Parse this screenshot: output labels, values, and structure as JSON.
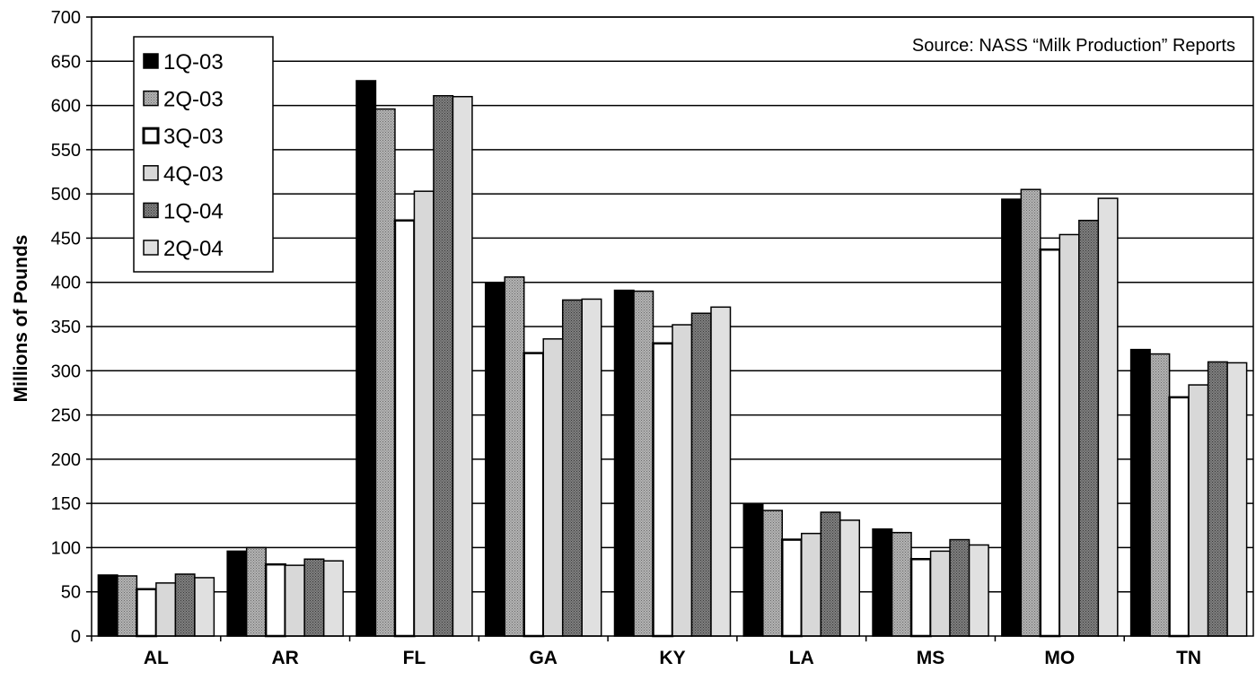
{
  "chart_data": {
    "type": "bar",
    "ylabel": "Millions of Pounds",
    "xlabel": "",
    "ylim": [
      0,
      700
    ],
    "ytick_step": 50,
    "grid": true,
    "legend_position": "top-left",
    "annotation": "Source: NASS “Milk Production” Reports",
    "categories": [
      "AL",
      "AR",
      "FL",
      "GA",
      "KY",
      "LA",
      "MS",
      "MO",
      "TN"
    ],
    "series": [
      {
        "name": "1Q-03",
        "color": "#000000",
        "pattern": "solid",
        "values": [
          69,
          96,
          628,
          399,
          391,
          149,
          121,
          494,
          324
        ]
      },
      {
        "name": "2Q-03",
        "color": "#a0a0a0",
        "pattern": "dots",
        "values": [
          68,
          100,
          596,
          406,
          390,
          142,
          117,
          505,
          319
        ]
      },
      {
        "name": "3Q-03",
        "color": "#ffffff",
        "pattern": "outline",
        "values": [
          53,
          81,
          470,
          320,
          331,
          109,
          87,
          437,
          270
        ]
      },
      {
        "name": "4Q-03",
        "color": "#d8d8d8",
        "pattern": "solid",
        "values": [
          60,
          80,
          503,
          336,
          352,
          116,
          96,
          454,
          284
        ]
      },
      {
        "name": "1Q-04",
        "color": "#707070",
        "pattern": "dots",
        "values": [
          70,
          87,
          611,
          380,
          365,
          140,
          109,
          470,
          310
        ]
      },
      {
        "name": "2Q-04",
        "color": "#e0e0e0",
        "pattern": "solid",
        "values": [
          66,
          85,
          610,
          381,
          372,
          131,
          103,
          495,
          309
        ]
      }
    ]
  }
}
